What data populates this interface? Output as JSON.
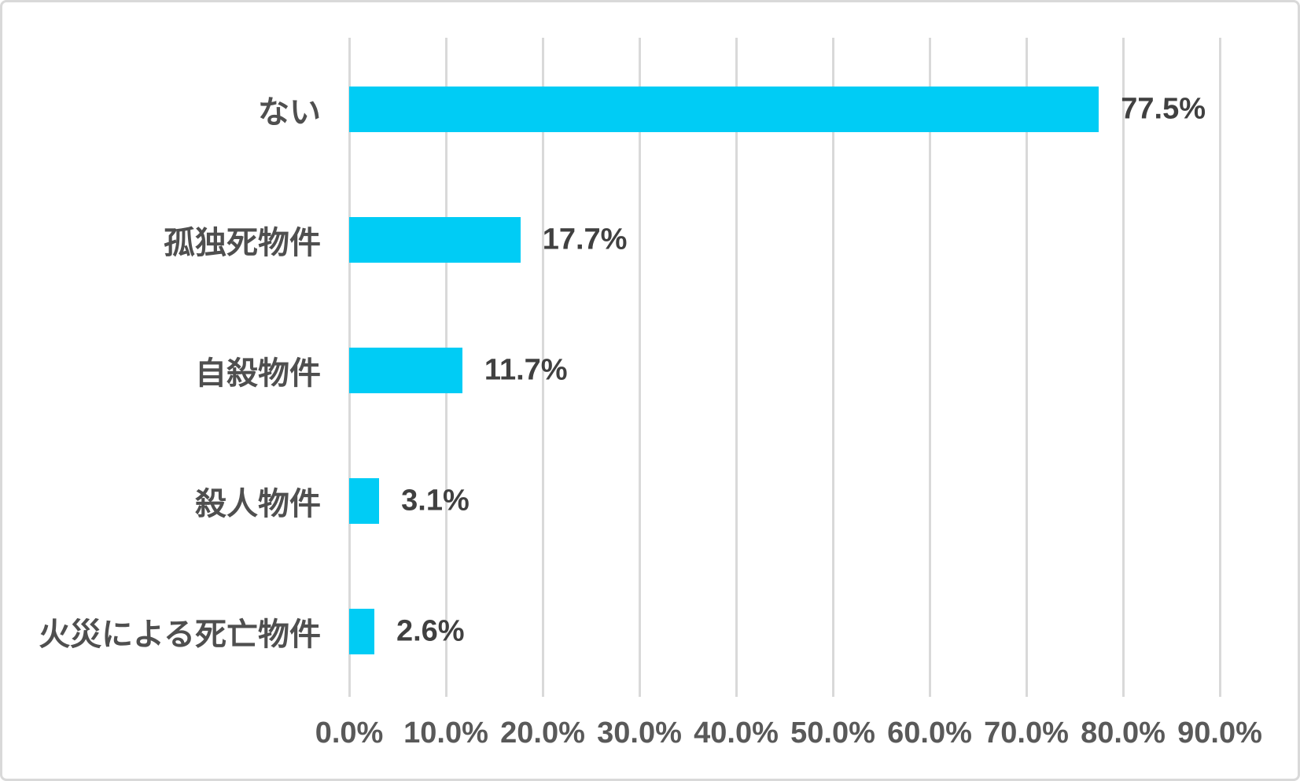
{
  "chart_data": {
    "type": "bar",
    "orientation": "horizontal",
    "title": "",
    "xlabel": "",
    "ylabel": "",
    "categories": [
      "ない",
      "孤独死物件",
      "自殺物件",
      "殺人物件",
      "火災による死亡物件"
    ],
    "values": [
      77.5,
      17.7,
      11.7,
      3.1,
      2.6
    ],
    "value_labels": [
      "77.5%",
      "17.7%",
      "11.7%",
      "3.1%",
      "2.6%"
    ],
    "x_ticks": [
      {
        "value": 0,
        "label": "0.0%"
      },
      {
        "value": 10,
        "label": "10.0%"
      },
      {
        "value": 20,
        "label": "20.0%"
      },
      {
        "value": 30,
        "label": "30.0%"
      },
      {
        "value": 40,
        "label": "40.0%"
      },
      {
        "value": 50,
        "label": "50.0%"
      },
      {
        "value": 60,
        "label": "60.0%"
      },
      {
        "value": 70,
        "label": "70.0%"
      },
      {
        "value": 80,
        "label": "80.0%"
      },
      {
        "value": 90,
        "label": "90.0%"
      }
    ],
    "xlim": [
      0,
      90
    ],
    "grid": "vertical-gridlines-on",
    "legend": "none",
    "colors": {
      "bar": "#00CCF5",
      "gridline": "#D9D9D9",
      "category_label": "#4F4F4F",
      "value_label": "#404040",
      "tick_label": "#595959"
    }
  }
}
